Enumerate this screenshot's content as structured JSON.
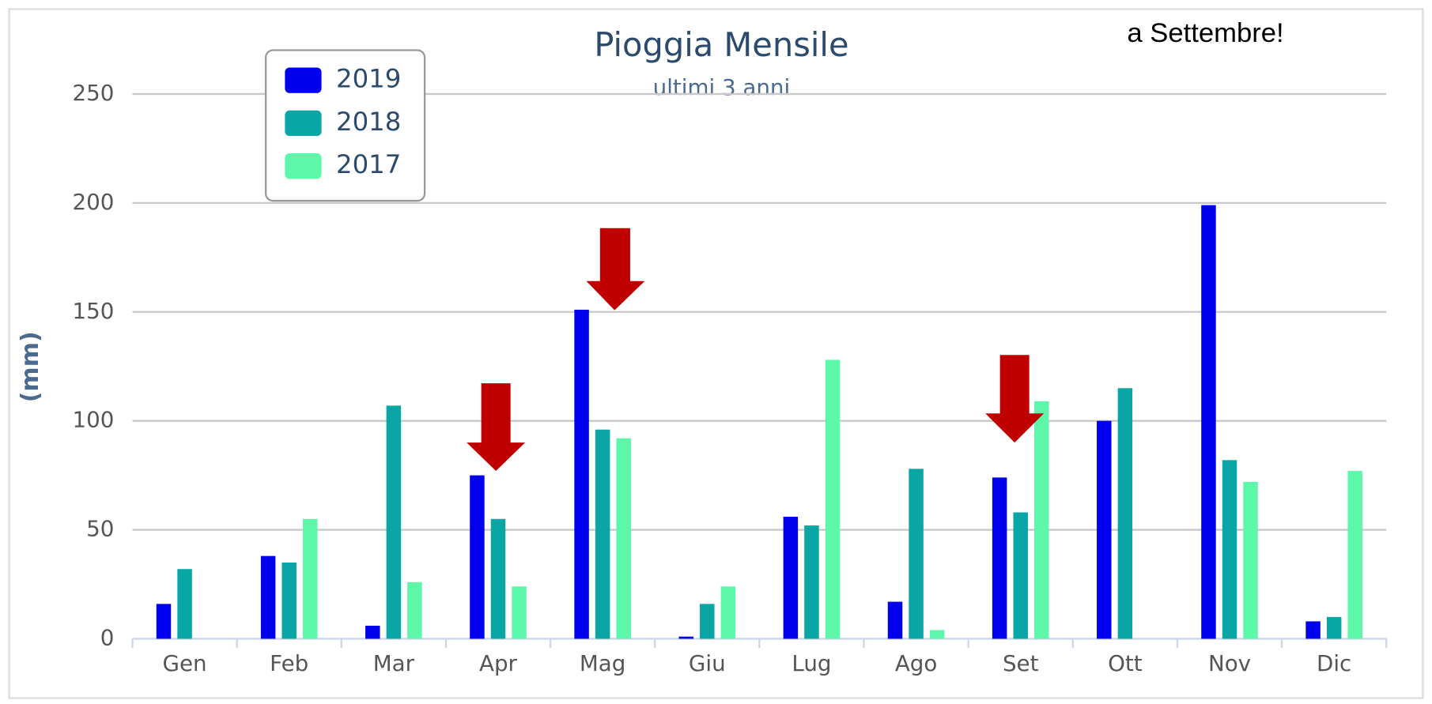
{
  "chart_data": {
    "type": "bar",
    "title": "Pioggia Mensile",
    "subtitle": "ultimi 3 anni",
    "y_label": "(mm)",
    "annotation": "a Settembre!",
    "categories": [
      "Gen",
      "Feb",
      "Mar",
      "Apr",
      "Mag",
      "Giu",
      "Lug",
      "Ago",
      "Set",
      "Ott",
      "Nov",
      "Dic"
    ],
    "series": [
      {
        "name": "2019",
        "color": "#0000ee",
        "values": [
          16,
          38,
          6,
          75,
          151,
          1,
          56,
          17,
          74,
          100,
          199,
          8
        ]
      },
      {
        "name": "2018",
        "color": "#0aa5a5",
        "values": [
          32,
          35,
          107,
          55,
          96,
          16,
          52,
          78,
          58,
          115,
          82,
          10
        ]
      },
      {
        "name": "2017",
        "color": "#5cf7a8",
        "values": [
          null,
          55,
          26,
          24,
          92,
          24,
          128,
          4,
          109,
          null,
          72,
          77
        ]
      }
    ],
    "ylim": [
      0,
      250
    ],
    "yticks": [
      0,
      50,
      100,
      150,
      200,
      250
    ],
    "grid": true,
    "legend": "upper left"
  }
}
